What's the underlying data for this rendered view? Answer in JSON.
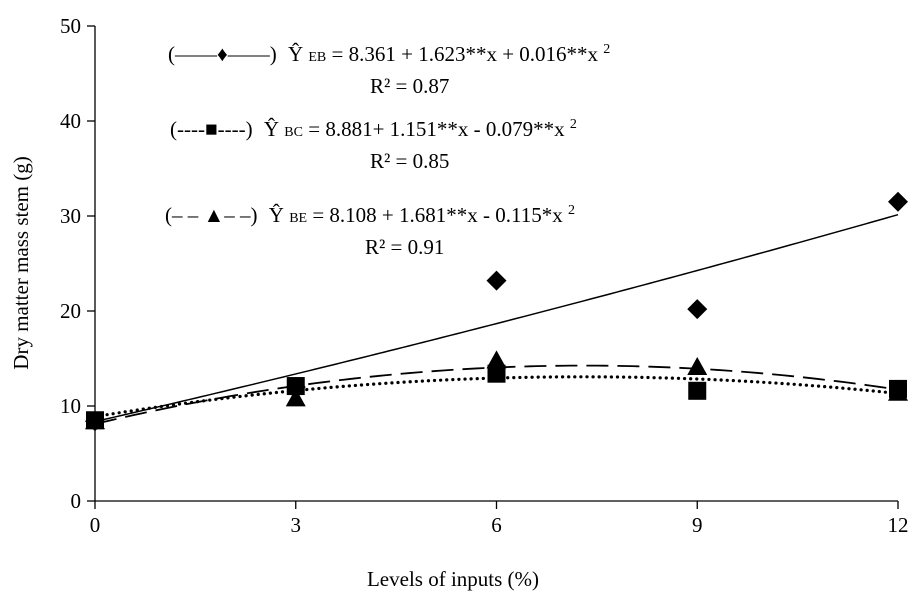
{
  "chart_data": {
    "type": "scatter",
    "xlabel": "Levels of inputs (%)",
    "ylabel": "Dry matter mass stem (g)",
    "xlim": [
      0,
      12
    ],
    "ylim": [
      0,
      50
    ],
    "xticks": [
      0,
      3,
      6,
      9,
      12
    ],
    "yticks": [
      0,
      10,
      20,
      30,
      40,
      50
    ],
    "grid": false,
    "series": [
      {
        "key": "EB",
        "marker": "diamond",
        "line": "solid",
        "x": [
          0,
          3,
          6,
          9,
          12
        ],
        "y": [
          8.4,
          12.0,
          23.2,
          20.2,
          31.5
        ],
        "fit": [
          8.361,
          1.623,
          0.016
        ],
        "legend_symbol": "(——♦——)",
        "equation_lhs": "Ŷ",
        "equation_sub": "EB",
        "equation_rhs": " = 8.361 + 1.623**x + 0.016**x",
        "equation_sup": "2",
        "r2": "R² = 0.87"
      },
      {
        "key": "BC",
        "marker": "square",
        "line": "dotted",
        "x": [
          0,
          3,
          6,
          9,
          12
        ],
        "y": [
          8.5,
          12.1,
          13.4,
          11.6,
          11.8
        ],
        "fit": [
          8.881,
          1.151,
          -0.079
        ],
        "legend_symbol": "(----■----)",
        "equation_lhs": "Ŷ",
        "equation_sub": "BC",
        "equation_rhs": " = 8.881+ 1.151**x - 0.079**x",
        "equation_sup": "2",
        "r2": "R² = 0.85"
      },
      {
        "key": "BE",
        "marker": "triangle",
        "line": "dashed",
        "x": [
          0,
          3,
          6,
          9,
          12
        ],
        "y": [
          8.4,
          10.8,
          14.8,
          14.1,
          11.4
        ],
        "fit": [
          8.108,
          1.681,
          -0.115
        ],
        "legend_symbol": "(– – ▲– –)",
        "equation_lhs": "Ŷ",
        "equation_sub": "BE",
        "equation_rhs": " = 8.108 + 1.681**x - 0.115*x",
        "equation_sup": "2",
        "r2": "R² = 0.91"
      }
    ]
  }
}
